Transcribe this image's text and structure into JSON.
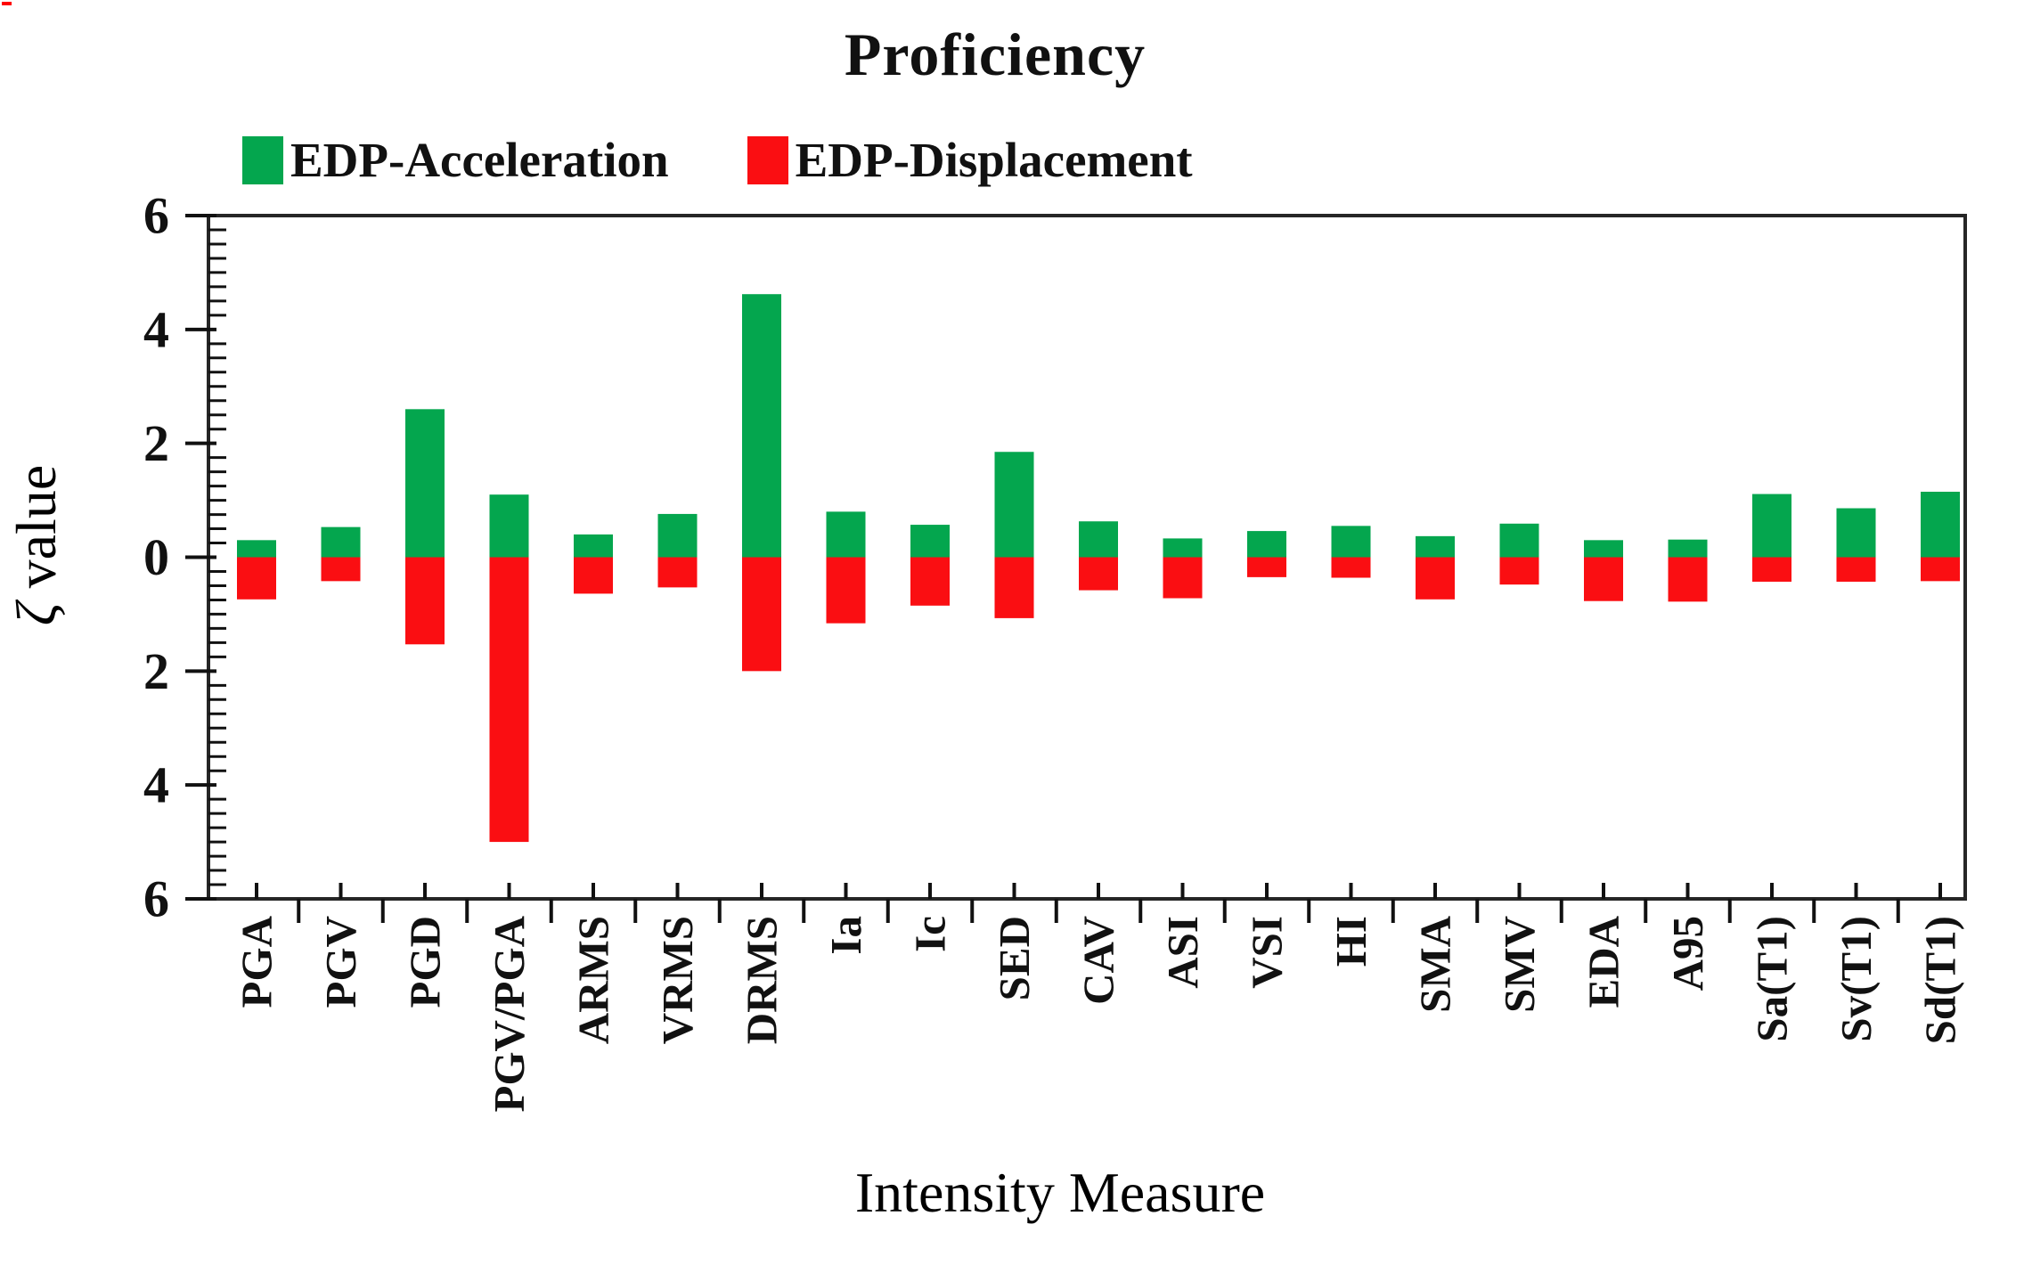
{
  "figure": {
    "title": "Proficiency"
  },
  "corner_mark_color": "#FF0000",
  "legend": {
    "items": [
      {
        "label": "EDP-Acceleration",
        "color": "#04A64E"
      },
      {
        "label": "EDP-Displacement",
        "color": "#FA0E12"
      }
    ]
  },
  "y_axis": {
    "symbol": "ζ",
    "label_rest": " value",
    "tick_labels": [
      "6",
      "4",
      "2",
      "0",
      "2",
      "4",
      "6"
    ],
    "tick_values": [
      6,
      4,
      2,
      0,
      -2,
      -4,
      -6
    ]
  },
  "x_axis": {
    "label": "Intensity Measure"
  },
  "chart_data": {
    "type": "bar",
    "variant": "diverging-stacked-columns",
    "title": "Proficiency",
    "xlabel": "Intensity Measure",
    "ylabel": "ζ value",
    "ylim": [
      -6,
      6
    ],
    "y_major_tick_step": 2,
    "y_minor_tick_step": 0.25,
    "y_tick_label_style": "absolute-value",
    "grid": false,
    "legend_position": "top-left-above-plot",
    "categories": [
      "PGA",
      "PGV",
      "PGD",
      "PGV/PGA",
      "ARMS",
      "VRMS",
      "DRMS",
      "Ia",
      "Ic",
      "SED",
      "CAV",
      "ASI",
      "VSI",
      "HI",
      "SMA",
      "SMV",
      "EDA",
      "A95",
      "Sa(T1)",
      "Sv(T1)",
      "Sd(T1)"
    ],
    "series": [
      {
        "name": "EDP-Acceleration",
        "color": "#04A64E",
        "direction": "positive",
        "values": [
          0.3,
          0.53,
          2.6,
          1.1,
          0.4,
          0.76,
          4.62,
          0.8,
          0.57,
          1.85,
          0.63,
          0.33,
          0.46,
          0.55,
          0.37,
          0.59,
          0.3,
          0.31,
          1.11,
          0.86,
          1.15
        ]
      },
      {
        "name": "EDP-Displacement",
        "color": "#FA0E12",
        "direction": "negative",
        "values": [
          -0.74,
          -0.42,
          -1.53,
          -5.0,
          -0.64,
          -0.53,
          -2.0,
          -1.16,
          -0.85,
          -1.07,
          -0.58,
          -0.72,
          -0.35,
          -0.36,
          -0.74,
          -0.48,
          -0.77,
          -0.78,
          -0.43,
          -0.43,
          -0.42
        ]
      }
    ]
  }
}
